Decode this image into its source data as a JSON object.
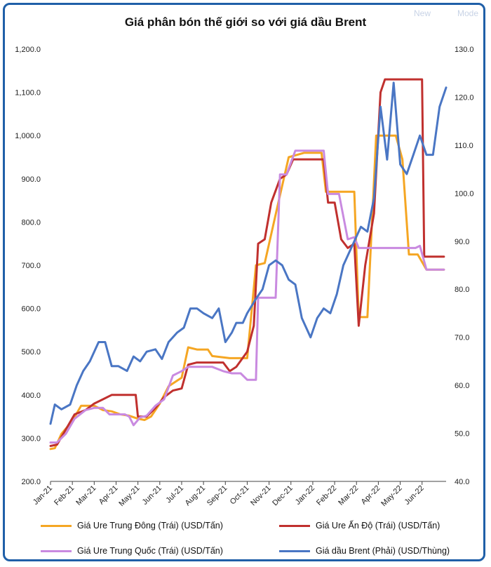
{
  "chart_data": {
    "type": "line",
    "title": "Giá phân bón thế giới so với giá dầu Brent",
    "categories": [
      "Jan-21",
      "Feb-21",
      "Mar-21",
      "Apr-21",
      "May-21",
      "Jun-21",
      "Jul-21",
      "Aug-21",
      "Sep-21",
      "Oct-21",
      "Nov-21",
      "Dec-21",
      "Jan-22",
      "Feb-22",
      "Mar-22",
      "Apr-22",
      "May-22",
      "Jun-22"
    ],
    "y_left": {
      "range": [
        200,
        1200
      ],
      "ticks": [
        "200.0",
        "300.0",
        "400.0",
        "500.0",
        "600.0",
        "700.0",
        "800.0",
        "900.0",
        "1,000.0",
        "1,100.0",
        "1,200.0"
      ]
    },
    "y_right": {
      "range": [
        40,
        130
      ],
      "ticks": [
        "40.0",
        "50.0",
        "60.0",
        "70.0",
        "80.0",
        "90.0",
        "100.0",
        "110.0",
        "120.0",
        "130.0"
      ]
    },
    "x_span": [
      0,
      18.1
    ],
    "grid": false,
    "legend_position": "bottom",
    "series": [
      {
        "name": "Giá Ure Trung Đông (Trái) (USD/Tấn)",
        "axis": "left",
        "color": "#f5a623",
        "points": [
          [
            0,
            275
          ],
          [
            0.2,
            277
          ],
          [
            0.5,
            310
          ],
          [
            1,
            340
          ],
          [
            1.4,
            375
          ],
          [
            2,
            375
          ],
          [
            2.4,
            365
          ],
          [
            2.8,
            362
          ],
          [
            3.2,
            355
          ],
          [
            3.6,
            352
          ],
          [
            4,
            345
          ],
          [
            4.3,
            342
          ],
          [
            4.6,
            350
          ],
          [
            5,
            380
          ],
          [
            5.4,
            420
          ],
          [
            6,
            440
          ],
          [
            6.3,
            510
          ],
          [
            6.7,
            505
          ],
          [
            7.2,
            505
          ],
          [
            7.4,
            490
          ],
          [
            8.2,
            485
          ],
          [
            9,
            485
          ],
          [
            9.4,
            700
          ],
          [
            9.8,
            705
          ],
          [
            10.4,
            840
          ],
          [
            10.9,
            950
          ],
          [
            11.6,
            960
          ],
          [
            12.4,
            960
          ],
          [
            12.6,
            870
          ],
          [
            13,
            870
          ],
          [
            13.5,
            870
          ],
          [
            13.9,
            870
          ],
          [
            14.1,
            580
          ],
          [
            14.5,
            580
          ],
          [
            14.9,
            1000
          ],
          [
            15.4,
            1000
          ],
          [
            15.8,
            1000
          ],
          [
            16.1,
            945
          ],
          [
            16.4,
            725
          ],
          [
            16.8,
            725
          ],
          [
            17.2,
            690
          ],
          [
            18,
            690
          ]
        ]
      },
      {
        "name": "Giá Ure Ấn Độ (Trái) (USD/Tấn)",
        "axis": "left",
        "color": "#c0302e",
        "points": [
          [
            0,
            282
          ],
          [
            0.3,
            285
          ],
          [
            0.7,
            320
          ],
          [
            1.1,
            355
          ],
          [
            1.6,
            365
          ],
          [
            2,
            380
          ],
          [
            2.4,
            390
          ],
          [
            2.8,
            400
          ],
          [
            3.5,
            400
          ],
          [
            3.9,
            400
          ],
          [
            4,
            350
          ],
          [
            4.4,
            350
          ],
          [
            4.8,
            370
          ],
          [
            5.2,
            395
          ],
          [
            5.6,
            410
          ],
          [
            6,
            415
          ],
          [
            6.3,
            470
          ],
          [
            6.7,
            475
          ],
          [
            7.5,
            475
          ],
          [
            7.9,
            475
          ],
          [
            8.2,
            455
          ],
          [
            8.5,
            465
          ],
          [
            9,
            500
          ],
          [
            9.3,
            560
          ],
          [
            9.5,
            750
          ],
          [
            9.8,
            760
          ],
          [
            10.1,
            845
          ],
          [
            10.5,
            900
          ],
          [
            10.8,
            910
          ],
          [
            11.1,
            945
          ],
          [
            12.5,
            945
          ],
          [
            12.7,
            845
          ],
          [
            13,
            845
          ],
          [
            13.3,
            760
          ],
          [
            13.6,
            740
          ],
          [
            13.9,
            750
          ],
          [
            14.1,
            560
          ],
          [
            14.4,
            700
          ],
          [
            14.8,
            820
          ],
          [
            15.1,
            1100
          ],
          [
            15.3,
            1130
          ],
          [
            16.6,
            1130
          ],
          [
            17,
            1130
          ],
          [
            17.1,
            720
          ],
          [
            17.7,
            720
          ],
          [
            18,
            720
          ]
        ]
      },
      {
        "name": "Giá Ure Trung Quốc (Trái) (USD/Tấn)",
        "axis": "left",
        "color": "#c98ae0",
        "points": [
          [
            0,
            290
          ],
          [
            0.3,
            290
          ],
          [
            0.7,
            310
          ],
          [
            1.1,
            345
          ],
          [
            1.6,
            365
          ],
          [
            2,
            370
          ],
          [
            2.4,
            370
          ],
          [
            2.7,
            355
          ],
          [
            3,
            355
          ],
          [
            3.4,
            355
          ],
          [
            3.6,
            350
          ],
          [
            3.8,
            330
          ],
          [
            4.1,
            348
          ],
          [
            4.4,
            352
          ],
          [
            4.8,
            375
          ],
          [
            5.2,
            390
          ],
          [
            5.6,
            445
          ],
          [
            6,
            455
          ],
          [
            6.3,
            465
          ],
          [
            6.7,
            465
          ],
          [
            7.4,
            465
          ],
          [
            7.9,
            455
          ],
          [
            8.3,
            450
          ],
          [
            8.7,
            450
          ],
          [
            9,
            435
          ],
          [
            9.4,
            435
          ],
          [
            9.5,
            625
          ],
          [
            10.1,
            625
          ],
          [
            10.3,
            625
          ],
          [
            10.5,
            910
          ],
          [
            10.8,
            910
          ],
          [
            11.2,
            965
          ],
          [
            12.3,
            965
          ],
          [
            12.5,
            965
          ],
          [
            12.7,
            865
          ],
          [
            13.2,
            865
          ],
          [
            13.6,
            760
          ],
          [
            13.9,
            765
          ],
          [
            14.1,
            740
          ],
          [
            14.5,
            740
          ],
          [
            15.5,
            740
          ],
          [
            16.1,
            740
          ],
          [
            16.4,
            740
          ],
          [
            16.7,
            740
          ],
          [
            16.9,
            745
          ],
          [
            17.2,
            690
          ],
          [
            18,
            690
          ]
        ]
      },
      {
        "name": "Giá dầu Brent (Phải) (USD/Thùng)",
        "axis": "right",
        "color": "#4a76c4",
        "points": [
          [
            0,
            52
          ],
          [
            0.2,
            56
          ],
          [
            0.5,
            55
          ],
          [
            0.9,
            56
          ],
          [
            1.2,
            60
          ],
          [
            1.5,
            63
          ],
          [
            1.8,
            65
          ],
          [
            2.2,
            69
          ],
          [
            2.5,
            69
          ],
          [
            2.8,
            64
          ],
          [
            3.1,
            64
          ],
          [
            3.5,
            63
          ],
          [
            3.8,
            66
          ],
          [
            4.1,
            65
          ],
          [
            4.4,
            67
          ],
          [
            4.8,
            67.5
          ],
          [
            5.1,
            65.5
          ],
          [
            5.4,
            69
          ],
          [
            5.8,
            71
          ],
          [
            6.1,
            72
          ],
          [
            6.4,
            76
          ],
          [
            6.7,
            76
          ],
          [
            7,
            75
          ],
          [
            7.4,
            74
          ],
          [
            7.7,
            76
          ],
          [
            8,
            69
          ],
          [
            8.3,
            71
          ],
          [
            8.5,
            73
          ],
          [
            8.8,
            73
          ],
          [
            9,
            75
          ],
          [
            9.4,
            78
          ],
          [
            9.7,
            80
          ],
          [
            10,
            85
          ],
          [
            10.3,
            86
          ],
          [
            10.6,
            85
          ],
          [
            10.9,
            82
          ],
          [
            11.2,
            81
          ],
          [
            11.5,
            74
          ],
          [
            11.9,
            70
          ],
          [
            12.2,
            74
          ],
          [
            12.5,
            76
          ],
          [
            12.8,
            75
          ],
          [
            13.1,
            79
          ],
          [
            13.4,
            85
          ],
          [
            13.8,
            89
          ],
          [
            14.2,
            93
          ],
          [
            14.5,
            92
          ],
          [
            14.8,
            99
          ],
          [
            15.1,
            118
          ],
          [
            15.4,
            107
          ],
          [
            15.7,
            123
          ],
          [
            16,
            106
          ],
          [
            16.3,
            104
          ],
          [
            16.6,
            108
          ],
          [
            16.9,
            112
          ],
          [
            17.2,
            108
          ],
          [
            17.5,
            108
          ],
          [
            17.8,
            118
          ],
          [
            18.1,
            122
          ]
        ]
      }
    ]
  },
  "watermark": {
    "left": "New",
    "right": "Mode"
  }
}
